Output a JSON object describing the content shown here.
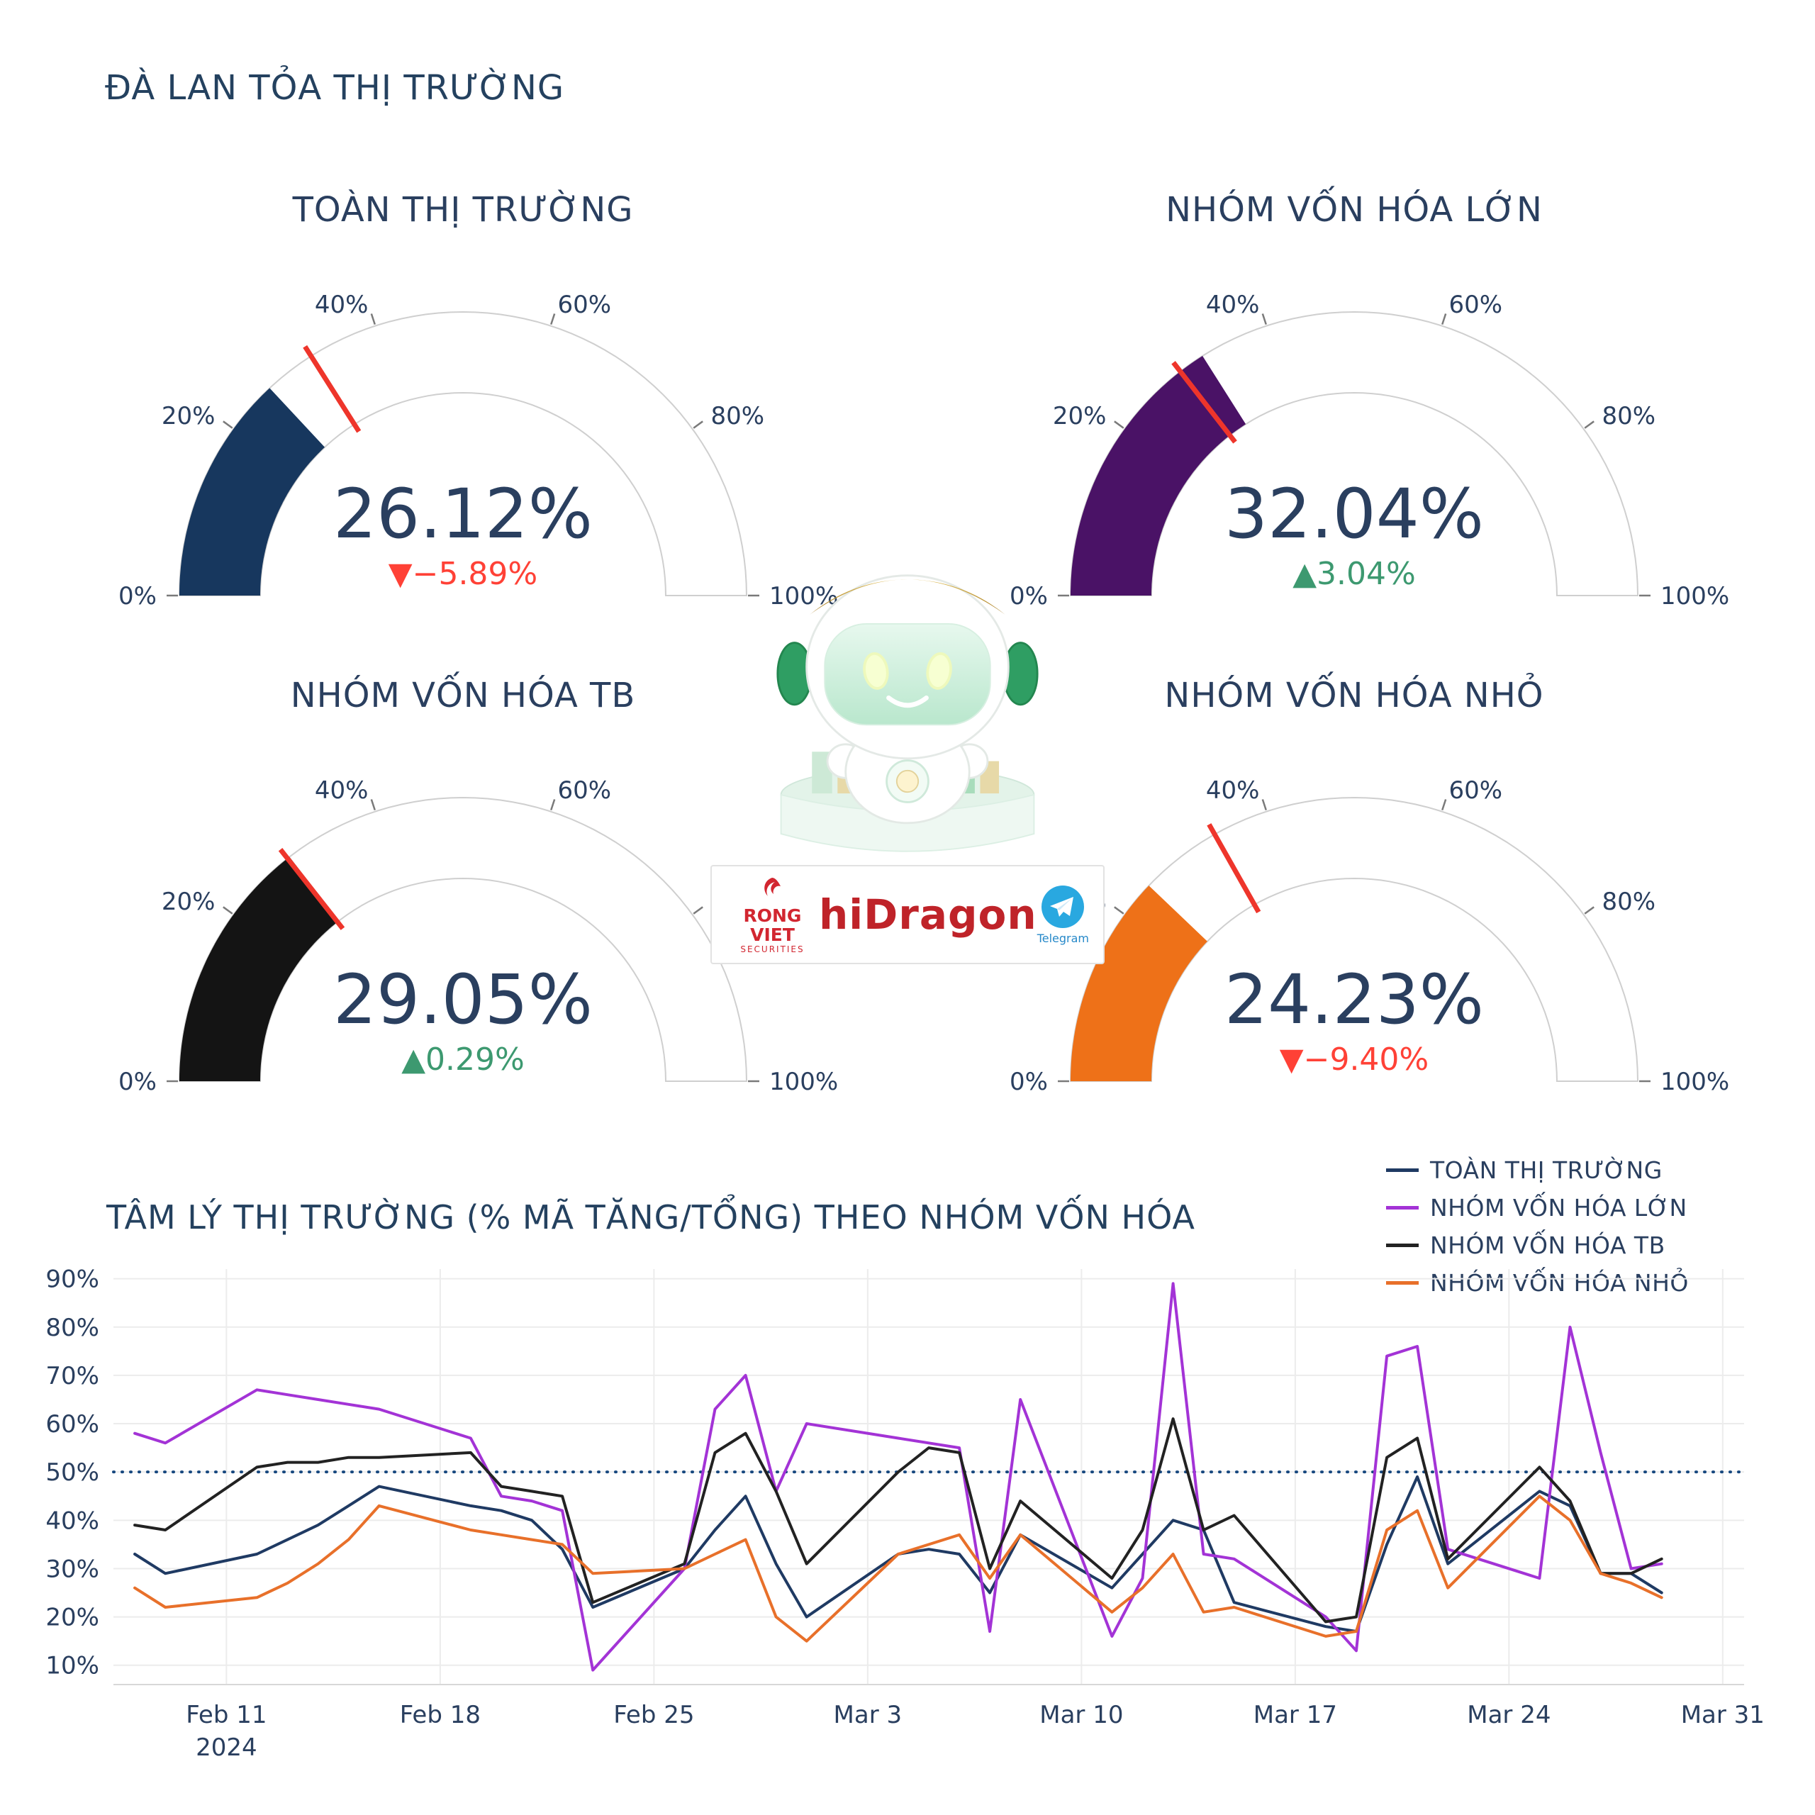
{
  "page": {
    "title": "ĐÀ LAN TỎA THỊ TRƯỜNG"
  },
  "delta_colors": {
    "up": "#3D9970",
    "down": "#FF4136"
  },
  "gauge_axis": {
    "ticks": [
      {
        "value": 0,
        "label": "0%"
      },
      {
        "value": 20,
        "label": "20%"
      },
      {
        "value": 40,
        "label": "40%"
      },
      {
        "value": 60,
        "label": "60%"
      },
      {
        "value": 80,
        "label": "80%"
      },
      {
        "value": 100,
        "label": "100%"
      }
    ]
  },
  "gauges": [
    {
      "title": "TOÀN THỊ TRƯỜNG",
      "value": 26.12,
      "value_label": "26.12%",
      "delta_label": "▼−5.89%",
      "delta_dir": "down",
      "threshold": 32.01,
      "color": "#17375e"
    },
    {
      "title": "NHÓM VỐN HÓA LỚN",
      "value": 32.04,
      "value_label": "32.04%",
      "delta_label": "▲3.04%",
      "delta_dir": "up",
      "threshold": 29.0,
      "color": "#4a1266"
    },
    {
      "title": "NHÓM VỐN HÓA TB",
      "value": 29.05,
      "value_label": "29.05%",
      "delta_label": "▲0.29%",
      "delta_dir": "up",
      "threshold": 28.76,
      "color": "#141414"
    },
    {
      "title": "NHÓM VỐN HÓA NHỎ",
      "value": 24.23,
      "value_label": "24.23%",
      "delta_label": "▼−9.40%",
      "delta_dir": "down",
      "threshold": 33.63,
      "color": "#ee7118"
    }
  ],
  "logo": {
    "partner_line1": "RONG VIET",
    "partner_line2": "SECURITIES",
    "brand": "hiDragon",
    "telegram_label": "Telegram"
  },
  "chart_data": {
    "type": "line",
    "title": "TÂM LÝ THỊ TRƯỜNG (% MÃ TĂNG/TỔNG) THEO NHÓM VỐN HÓA",
    "ylim": [
      6,
      92
    ],
    "yticks": [
      10,
      20,
      30,
      40,
      50,
      60,
      70,
      80,
      90
    ],
    "ytick_suffix": "%",
    "baseline": 50,
    "baseline_color": "#17487f",
    "grid": true,
    "legend_position": "top-right",
    "xlim": [
      -0.7,
      52.7
    ],
    "xticks": [
      {
        "day": 3,
        "label": "Feb 11",
        "sublabel": "2024"
      },
      {
        "day": 10,
        "label": "Feb 18"
      },
      {
        "day": 17,
        "label": "Feb 25"
      },
      {
        "day": 24,
        "label": "Mar 3"
      },
      {
        "day": 31,
        "label": "Mar 10"
      },
      {
        "day": 38,
        "label": "Mar 17"
      },
      {
        "day": 45,
        "label": "Mar 24"
      },
      {
        "day": 52,
        "label": "Mar 31"
      }
    ],
    "days": [
      0,
      1,
      4,
      5,
      6,
      7,
      8,
      11,
      12,
      13,
      14,
      15,
      18,
      19,
      20,
      21,
      22,
      25,
      26,
      27,
      28,
      29,
      32,
      33,
      34,
      35,
      36,
      39,
      40,
      41,
      42,
      43,
      46,
      47,
      48,
      49,
      50
    ],
    "series": [
      {
        "name": "TOÀN THỊ TRƯỜNG",
        "color": "#1f3a63",
        "values": [
          33,
          29,
          33,
          36,
          39,
          43,
          47,
          43,
          42,
          40,
          34,
          22,
          30,
          38,
          45,
          31,
          20,
          33,
          34,
          33,
          25,
          37,
          26,
          33,
          40,
          38,
          23,
          18,
          17,
          35,
          49,
          31,
          46,
          43,
          29,
          29,
          25
        ]
      },
      {
        "name": "NHÓM VỐN HÓA LỚN",
        "color": "#a333d6",
        "values": [
          58,
          56,
          67,
          66,
          65,
          64,
          63,
          57,
          45,
          44,
          42,
          9,
          30,
          63,
          70,
          46,
          60,
          57,
          56,
          55,
          17,
          65,
          16,
          28,
          89,
          33,
          32,
          20,
          13,
          74,
          76,
          34,
          28,
          80,
          54,
          30,
          31
        ]
      },
      {
        "name": "NHÓM VỐN HÓA TB",
        "color": "#222222",
        "values": [
          39,
          38,
          51,
          52,
          52,
          53,
          53,
          54,
          47,
          46,
          45,
          23,
          31,
          54,
          58,
          46,
          31,
          50,
          55,
          54,
          30,
          44,
          28,
          38,
          61,
          38,
          41,
          19,
          20,
          53,
          57,
          32,
          51,
          44,
          29,
          29,
          32
        ]
      },
      {
        "name": "NHÓM VỐN HÓA NHỎ",
        "color": "#e8702a",
        "values": [
          26,
          22,
          24,
          27,
          31,
          36,
          43,
          38,
          37,
          36,
          35,
          29,
          30,
          33,
          36,
          20,
          15,
          33,
          35,
          37,
          28,
          37,
          21,
          26,
          33,
          21,
          22,
          16,
          17,
          38,
          42,
          26,
          45,
          40,
          29,
          27,
          24
        ]
      }
    ]
  }
}
